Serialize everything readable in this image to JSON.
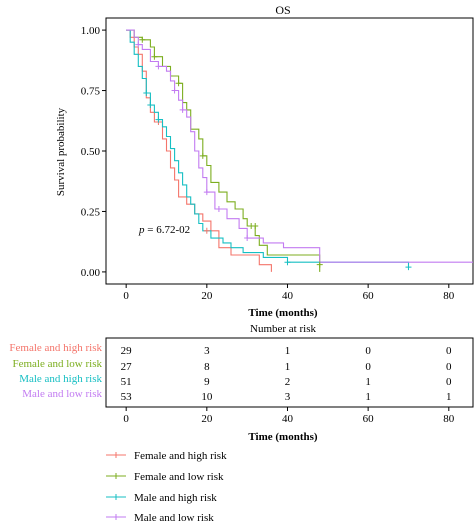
{
  "chart_data": [
    {
      "type": "line",
      "title": "OS",
      "xlabel": "Time (months)",
      "ylabel": "Survival probability",
      "xlim": [
        -5,
        86
      ],
      "ylim": [
        -0.05,
        1.05
      ],
      "xticks": [
        0,
        20,
        40,
        60,
        80
      ],
      "yticks": [
        0,
        0.25,
        0.5,
        0.75,
        1
      ],
      "ytick_labels": [
        "0.00",
        "0.25",
        "0.50",
        "0.75",
        "1.00"
      ],
      "annotation": {
        "prefix": "p",
        "text": " = 6.72-02",
        "x": 4,
        "y": 0.16
      },
      "grid": false,
      "series": [
        {
          "name": "Female and high risk",
          "color": "#f4756b",
          "steps": [
            [
              0,
              1
            ],
            [
              1,
              0.97
            ],
            [
              2,
              0.93
            ],
            [
              3,
              0.9
            ],
            [
              4,
              0.83
            ],
            [
              5,
              0.72
            ],
            [
              6,
              0.66
            ],
            [
              7,
              0.62
            ],
            [
              8,
              0.62
            ],
            [
              9,
              0.55
            ],
            [
              10,
              0.5
            ],
            [
              11,
              0.43
            ],
            [
              12,
              0.38
            ],
            [
              13,
              0.31
            ],
            [
              15,
              0.28
            ],
            [
              17,
              0.24
            ],
            [
              19,
              0.21
            ],
            [
              21,
              0.17
            ],
            [
              23,
              0.1
            ],
            [
              26,
              0.07
            ],
            [
              33,
              0.03
            ],
            [
              36,
              0
            ]
          ],
          "censors": [
            [
              8,
              0.62
            ],
            [
              20,
              0.17
            ]
          ]
        },
        {
          "name": "Female and low risk",
          "color": "#7cae1f",
          "steps": [
            [
              0,
              1
            ],
            [
              2,
              0.97
            ],
            [
              4,
              0.96
            ],
            [
              6,
              0.93
            ],
            [
              7,
              0.89
            ],
            [
              9,
              0.85
            ],
            [
              11,
              0.81
            ],
            [
              13,
              0.78
            ],
            [
              14,
              0.7
            ],
            [
              15,
              0.67
            ],
            [
              16,
              0.59
            ],
            [
              18,
              0.55
            ],
            [
              19,
              0.48
            ],
            [
              20,
              0.44
            ],
            [
              21,
              0.37
            ],
            [
              23,
              0.33
            ],
            [
              25,
              0.29
            ],
            [
              27,
              0.26
            ],
            [
              29,
              0.22
            ],
            [
              30,
              0.19
            ],
            [
              32,
              0.15
            ],
            [
              33,
              0.11
            ],
            [
              35,
              0.07
            ],
            [
              48,
              0
            ]
          ],
          "censors": [
            [
              4,
              0.96
            ],
            [
              7,
              0.89
            ],
            [
              13,
              0.78
            ],
            [
              19,
              0.48
            ],
            [
              31,
              0.19
            ],
            [
              32,
              0.19
            ],
            [
              48,
              0.03
            ]
          ]
        },
        {
          "name": "Male and high risk",
          "color": "#16bfc3",
          "steps": [
            [
              0,
              1
            ],
            [
              1,
              0.95
            ],
            [
              2,
              0.9
            ],
            [
              3,
              0.85
            ],
            [
              4,
              0.8
            ],
            [
              5,
              0.74
            ],
            [
              6,
              0.69
            ],
            [
              7,
              0.66
            ],
            [
              8,
              0.63
            ],
            [
              9,
              0.6
            ],
            [
              10,
              0.56
            ],
            [
              11,
              0.51
            ],
            [
              12,
              0.46
            ],
            [
              13,
              0.41
            ],
            [
              14,
              0.36
            ],
            [
              15,
              0.31
            ],
            [
              16,
              0.28
            ],
            [
              17,
              0.24
            ],
            [
              18,
              0.2
            ],
            [
              19,
              0.17
            ],
            [
              21,
              0.14
            ],
            [
              24,
              0.12
            ],
            [
              26,
              0.1
            ],
            [
              29,
              0.08
            ],
            [
              34,
              0.06
            ],
            [
              40,
              0.04
            ],
            [
              70,
              0.04
            ],
            [
              70,
              0.02
            ]
          ],
          "censors": [
            [
              5,
              0.74
            ],
            [
              6,
              0.69
            ],
            [
              8,
              0.63
            ],
            [
              40,
              0.04
            ],
            [
              70,
              0.02
            ]
          ]
        },
        {
          "name": "Male and low risk",
          "color": "#c27bf1",
          "steps": [
            [
              0,
              1
            ],
            [
              2,
              0.97
            ],
            [
              3,
              0.94
            ],
            [
              4,
              0.92
            ],
            [
              6,
              0.87
            ],
            [
              8,
              0.85
            ],
            [
              10,
              0.83
            ],
            [
              11,
              0.79
            ],
            [
              12,
              0.75
            ],
            [
              13,
              0.71
            ],
            [
              14,
              0.67
            ],
            [
              15,
              0.64
            ],
            [
              16,
              0.58
            ],
            [
              17,
              0.5
            ],
            [
              18,
              0.43
            ],
            [
              19,
              0.39
            ],
            [
              20,
              0.33
            ],
            [
              22,
              0.26
            ],
            [
              25,
              0.22
            ],
            [
              28,
              0.18
            ],
            [
              30,
              0.14
            ],
            [
              34,
              0.12
            ],
            [
              39,
              0.1
            ],
            [
              48,
              0.04
            ],
            [
              86,
              0.04
            ]
          ],
          "censors": [
            [
              3,
              0.94
            ],
            [
              8,
              0.85
            ],
            [
              12,
              0.75
            ],
            [
              14,
              0.67
            ],
            [
              20,
              0.33
            ],
            [
              23,
              0.26
            ],
            [
              30,
              0.14
            ]
          ]
        }
      ]
    },
    {
      "type": "table",
      "title": "Number at risk",
      "xlabel": "Time (months)",
      "xlim": [
        -5,
        86
      ],
      "xticks": [
        0,
        20,
        40,
        60,
        80
      ],
      "rows": [
        {
          "name": "Female and high risk",
          "color": "#f4756b",
          "values": [
            29,
            3,
            1,
            0,
            0
          ]
        },
        {
          "name": "Female and low risk",
          "color": "#7cae1f",
          "values": [
            27,
            8,
            1,
            0,
            0
          ]
        },
        {
          "name": "Male and high risk",
          "color": "#16bfc3",
          "values": [
            51,
            9,
            2,
            1,
            0
          ]
        },
        {
          "name": "Male and low risk",
          "color": "#c27bf1",
          "values": [
            53,
            10,
            3,
            1,
            1
          ]
        }
      ]
    }
  ],
  "legend": {
    "placement": "bottom",
    "items": [
      {
        "label": "Female and high risk",
        "color": "#f4756b"
      },
      {
        "label": "Female and low risk",
        "color": "#7cae1f"
      },
      {
        "label": "Male and high risk",
        "color": "#16bfc3"
      },
      {
        "label": "Male and low risk",
        "color": "#c27bf1"
      }
    ]
  }
}
